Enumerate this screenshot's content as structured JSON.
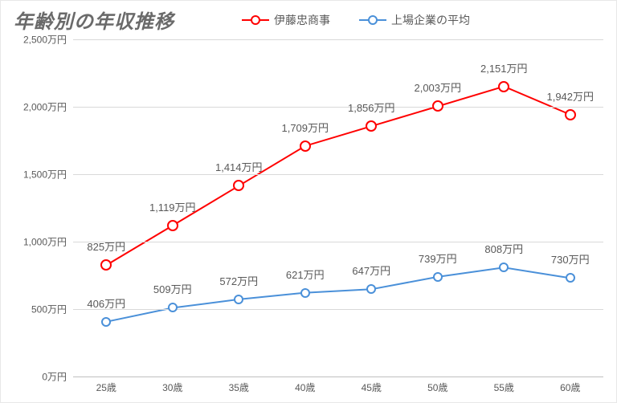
{
  "title": "年齢別の年収推移",
  "legend": {
    "series1": "伊藤忠商事",
    "series2": "上場企業の平均"
  },
  "chart": {
    "type": "line",
    "background_color": "#ffffff",
    "grid_color": "#d9d9d9",
    "text_color": "#595959",
    "title_color": "#6a6a6a",
    "title_fontsize": 24,
    "label_fontsize": 12,
    "value_label_fontsize": 13,
    "y": {
      "min": 0,
      "max": 2500,
      "tick_step": 500,
      "unit_suffix": "万円",
      "ticks": [
        0,
        500,
        1000,
        1500,
        2000,
        2500
      ]
    },
    "x": {
      "categories": [
        "25歳",
        "30歳",
        "35歳",
        "40歳",
        "45歳",
        "50歳",
        "55歳",
        "60歳"
      ]
    },
    "series": [
      {
        "key": "s1",
        "name": "伊藤忠商事",
        "color": "#ff0000",
        "line_width": 2,
        "marker_size": 14,
        "marker_border": 2.5,
        "values": [
          825,
          1119,
          1414,
          1709,
          1856,
          2003,
          2151,
          1942
        ],
        "value_labels": [
          "825万円",
          "1,119万円",
          "1,414万円",
          "1,709万円",
          "1,856万円",
          "2,003万円",
          "2,151万円",
          "1,942万円"
        ]
      },
      {
        "key": "s2",
        "name": "上場企業の平均",
        "color": "#4a90d9",
        "line_width": 2,
        "marker_size": 12,
        "marker_border": 2,
        "values": [
          406,
          509,
          572,
          621,
          647,
          739,
          808,
          730
        ],
        "value_labels": [
          "406万円",
          "509万円",
          "572万円",
          "621万円",
          "647万円",
          "739万円",
          "808万円",
          "730万円"
        ]
      }
    ]
  }
}
